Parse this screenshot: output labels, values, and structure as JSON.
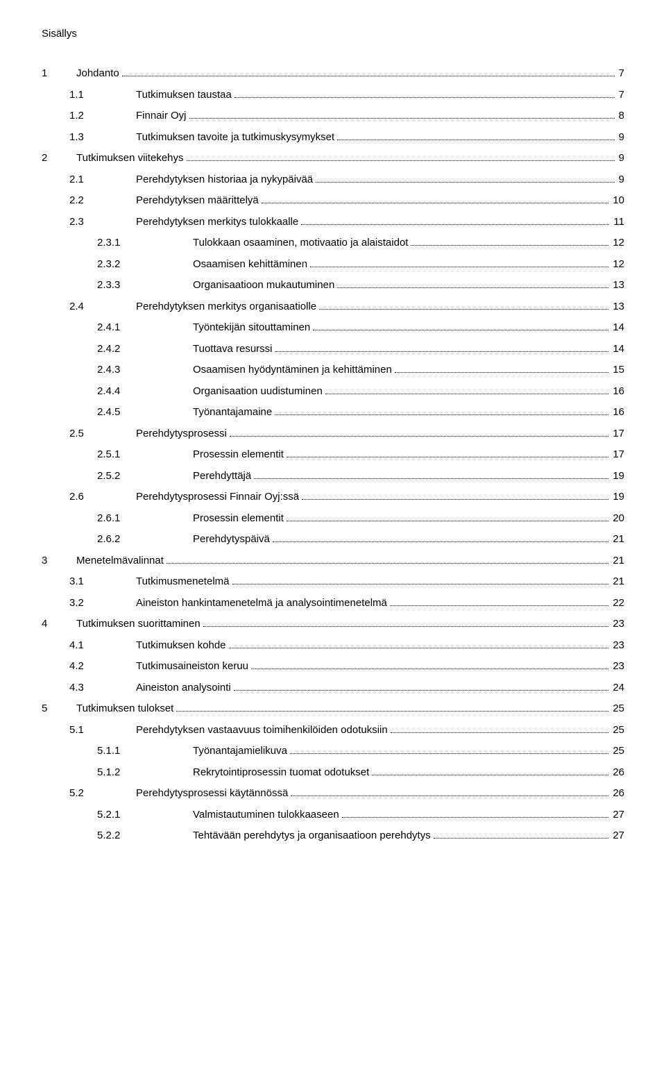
{
  "title": "Sisällys",
  "toc": [
    {
      "level": 0,
      "num": "1",
      "text": "Johdanto",
      "page": "7"
    },
    {
      "level": 1,
      "num": "1.1",
      "text": "Tutkimuksen taustaa",
      "page": "7"
    },
    {
      "level": 1,
      "num": "1.2",
      "text": "Finnair Oyj",
      "page": "8"
    },
    {
      "level": 1,
      "num": "1.3",
      "text": "Tutkimuksen tavoite ja tutkimuskysymykset",
      "page": "9"
    },
    {
      "level": 0,
      "num": "2",
      "text": "Tutkimuksen viitekehys",
      "page": "9"
    },
    {
      "level": 1,
      "num": "2.1",
      "text": "Perehdytyksen historiaa ja nykypäivää",
      "page": "9"
    },
    {
      "level": 1,
      "num": "2.2",
      "text": "Perehdytyksen määrittelyä",
      "page": "10"
    },
    {
      "level": 1,
      "num": "2.3",
      "text": "Perehdytyksen merkitys tulokkaalle",
      "page": "11"
    },
    {
      "level": 2,
      "num": "2.3.1",
      "text": "Tulokkaan osaaminen, motivaatio ja alaistaidot",
      "page": "12"
    },
    {
      "level": 2,
      "num": "2.3.2",
      "text": "Osaamisen kehittäminen",
      "page": "12"
    },
    {
      "level": 2,
      "num": "2.3.3",
      "text": "Organisaatioon mukautuminen",
      "page": "13"
    },
    {
      "level": 1,
      "num": "2.4",
      "text": "Perehdytyksen merkitys organisaatiolle",
      "page": "13"
    },
    {
      "level": 2,
      "num": "2.4.1",
      "text": "Työntekijän sitouttaminen",
      "page": "14"
    },
    {
      "level": 2,
      "num": "2.4.2",
      "text": "Tuottava resurssi",
      "page": "14"
    },
    {
      "level": 2,
      "num": "2.4.3",
      "text": "Osaamisen hyödyntäminen ja kehittäminen",
      "page": "15"
    },
    {
      "level": 2,
      "num": "2.4.4",
      "text": "Organisaation uudistuminen",
      "page": "16"
    },
    {
      "level": 2,
      "num": "2.4.5",
      "text": "Työnantajamaine",
      "page": "16"
    },
    {
      "level": 1,
      "num": "2.5",
      "text": "Perehdytysprosessi",
      "page": "17"
    },
    {
      "level": 2,
      "num": "2.5.1",
      "text": "Prosessin elementit",
      "page": "17"
    },
    {
      "level": 2,
      "num": "2.5.2",
      "text": "Perehdyttäjä",
      "page": "19"
    },
    {
      "level": 1,
      "num": "2.6",
      "text": "Perehdytysprosessi Finnair Oyj:ssä",
      "page": "19"
    },
    {
      "level": 2,
      "num": "2.6.1",
      "text": "Prosessin elementit",
      "page": "20"
    },
    {
      "level": 2,
      "num": "2.6.2",
      "text": "Perehdytyspäivä",
      "page": "21"
    },
    {
      "level": 0,
      "num": "3",
      "text": "Menetelmävalinnat",
      "page": "21"
    },
    {
      "level": 1,
      "num": "3.1",
      "text": "Tutkimusmenetelmä",
      "page": "21"
    },
    {
      "level": 1,
      "num": "3.2",
      "text": "Aineiston hankintamenetelmä ja analysointimenetelmä",
      "page": "22"
    },
    {
      "level": 0,
      "num": "4",
      "text": "Tutkimuksen suorittaminen",
      "page": "23"
    },
    {
      "level": 1,
      "num": "4.1",
      "text": "Tutkimuksen kohde",
      "page": "23"
    },
    {
      "level": 1,
      "num": "4.2",
      "text": "Tutkimusaineiston keruu",
      "page": "23"
    },
    {
      "level": 1,
      "num": "4.3",
      "text": "Aineiston analysointi",
      "page": "24"
    },
    {
      "level": 0,
      "num": "5",
      "text": "Tutkimuksen tulokset",
      "page": "25"
    },
    {
      "level": 1,
      "num": "5.1",
      "text": "Perehdytyksen vastaavuus toimihenkilöiden odotuksiin",
      "page": "25"
    },
    {
      "level": 2,
      "num": "5.1.1",
      "text": "Työnantajamielikuva",
      "page": "25"
    },
    {
      "level": 2,
      "num": "5.1.2",
      "text": "Rekrytointiprosessin tuomat odotukset",
      "page": "26"
    },
    {
      "level": 1,
      "num": "5.2",
      "text": "Perehdytysprosessi käytännössä",
      "page": "26"
    },
    {
      "level": 2,
      "num": "5.2.1",
      "text": "Valmistautuminen tulokkaaseen",
      "page": "27"
    },
    {
      "level": 2,
      "num": "5.2.2",
      "text": "Tehtävään perehdytys ja organisaatioon perehdytys",
      "page": "27"
    }
  ]
}
